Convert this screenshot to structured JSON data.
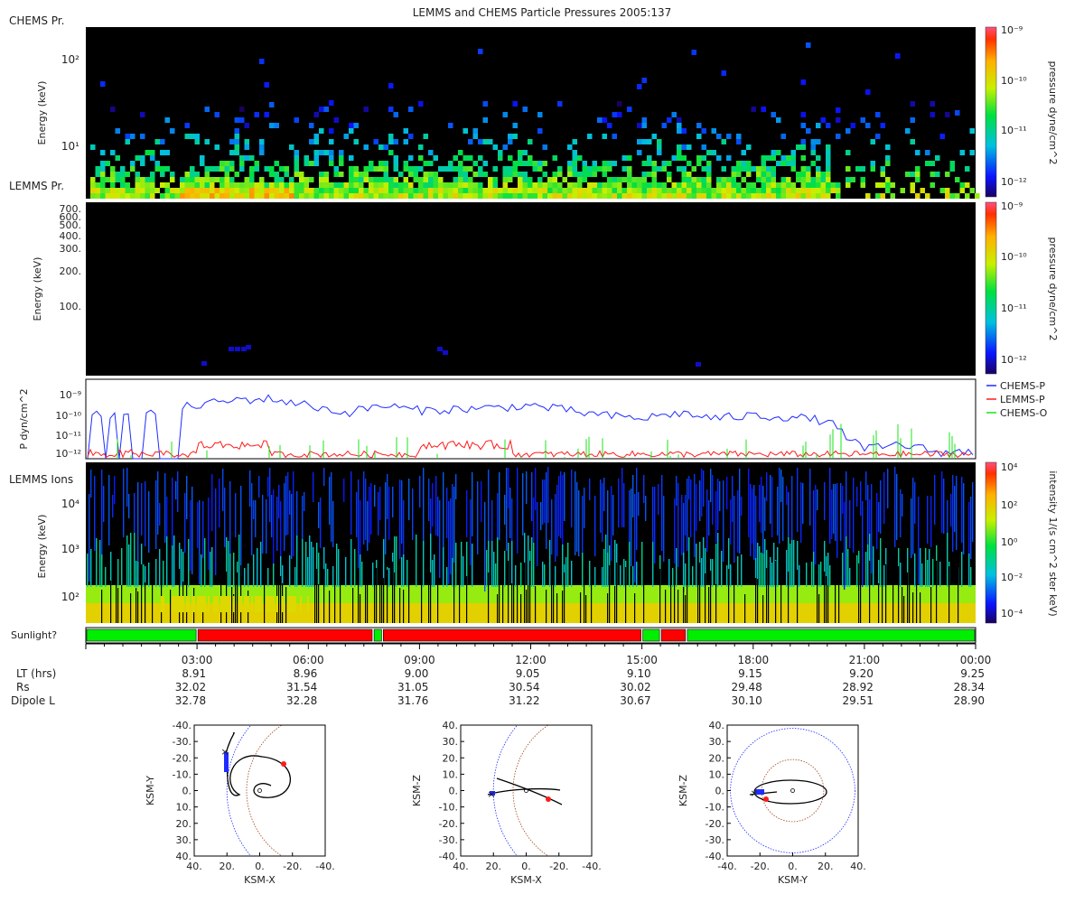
{
  "title": "LEMMS and CHEMS Particle Pressures  2005:137",
  "panels": {
    "chems": {
      "corner_label": "CHEMS Pr.",
      "ylabel": "Energy (keV)",
      "yticks": [
        "10²",
        "10¹"
      ],
      "colorbar_label": "pressure dyne/cm^2",
      "colorbar_ticks": [
        "10⁻⁹",
        "10⁻¹⁰",
        "10⁻¹¹",
        "10⁻¹²"
      ]
    },
    "lemms_pr": {
      "corner_label": "LEMMS Pr.",
      "ylabel": "Energy (keV)",
      "yticks": [
        "700.",
        "600.",
        "500.",
        "400.",
        "300.",
        "200.",
        "100."
      ],
      "colorbar_label": "pressure dyne/cm^2",
      "colorbar_ticks": [
        "10⁻⁹",
        "10⁻¹⁰",
        "10⁻¹¹",
        "10⁻¹²"
      ]
    },
    "pressure_lines": {
      "ylabel": "P dyn/cm^2",
      "yticks": [
        "10⁻⁹",
        "10⁻¹⁰",
        "10⁻¹¹",
        "10⁻¹²"
      ],
      "legend": [
        {
          "name": "CHEMS-P",
          "color": "#1f2cff"
        },
        {
          "name": "LEMMS-P",
          "color": "#ff1a1a"
        },
        {
          "name": "CHEMS-O",
          "color": "#19e619"
        }
      ]
    },
    "lemms_ions": {
      "corner_label": "LEMMS Ions",
      "ylabel": "Energy (keV)",
      "yticks": [
        "10⁴",
        "10³",
        "10²"
      ],
      "colorbar_label": "intensity 1/(s cm^2 ster keV)",
      "colorbar_ticks": [
        "10⁴",
        "10²",
        "10⁰",
        "10⁻²",
        "10⁻⁴"
      ]
    },
    "sunlight": {
      "label": "Sunlight?",
      "colors": {
        "sun": "#00ee00",
        "shadow": "#ff0000"
      }
    }
  },
  "time_axis": {
    "tick_labels": [
      "03:00",
      "06:00",
      "09:00",
      "12:00",
      "15:00",
      "18:00",
      "21:00",
      "00:00"
    ],
    "rows": [
      {
        "label": "LT (hrs)",
        "values": [
          "8.91",
          "8.96",
          "9.00",
          "9.05",
          "9.10",
          "9.15",
          "9.20",
          "9.25"
        ]
      },
      {
        "label": "Rs",
        "values": [
          "32.02",
          "31.54",
          "31.05",
          "30.54",
          "30.02",
          "29.48",
          "28.92",
          "28.34"
        ]
      },
      {
        "label": "Dipole L",
        "values": [
          "32.78",
          "32.28",
          "31.76",
          "31.22",
          "30.67",
          "30.10",
          "29.51",
          "28.90"
        ]
      }
    ]
  },
  "orbit_plots": [
    {
      "xlabel": "KSM-X",
      "ylabel": "KSM-Y",
      "xticks": [
        "40.",
        "20.",
        "0.",
        "-20.",
        "-40."
      ],
      "yticks": [
        "-40.",
        "-30.",
        "-20.",
        "-10.",
        "0.",
        "10.",
        "20.",
        "30.",
        "40."
      ]
    },
    {
      "xlabel": "KSM-X",
      "ylabel": "KSM-Z",
      "xticks": [
        "40.",
        "20.",
        "0.",
        "-20.",
        "-40."
      ],
      "yticks": [
        "40.",
        "30.",
        "20.",
        "10.",
        "0.",
        "-10.",
        "-20.",
        "-30.",
        "-40."
      ]
    },
    {
      "xlabel": "KSM-Y",
      "ylabel": "KSM-Z",
      "xticks": [
        "-40.",
        "-20.",
        "0.",
        "20.",
        "40."
      ],
      "yticks": [
        "40.",
        "30.",
        "20.",
        "10.",
        "0.",
        "-10.",
        "-20.",
        "-30.",
        "-40."
      ]
    }
  ],
  "chart_data": [
    {
      "type": "heatmap",
      "ylabel": "Energy (keV)",
      "zlabel": "pressure dyne/cm^2",
      "xrange_hours": [
        0,
        24
      ],
      "zrange": [
        "1e-12",
        "1e-9"
      ]
    },
    {
      "type": "heatmap",
      "ylabel": "Energy (keV)",
      "zlabel": "pressure dyne/cm^2",
      "xrange_hours": [
        0,
        24
      ],
      "zrange": [
        "1e-12",
        "1e-9"
      ]
    },
    {
      "type": "line",
      "ylabel": "P dyn/cm^2",
      "ylog": true,
      "yrange": [
        "1e-12",
        "1e-9"
      ],
      "series": [
        {
          "name": "CHEMS-P",
          "x_hours": [
            0.5,
            1,
            2,
            3,
            4,
            5,
            6,
            7,
            8,
            9,
            10,
            11,
            12,
            13,
            14,
            15,
            16,
            17,
            18,
            19,
            20,
            21,
            22,
            23
          ],
          "log10_p": [
            -10.3,
            -10.5,
            -10.2,
            -10.0,
            -9.8,
            -9.75,
            -10.0,
            -10.3,
            -10.0,
            -10.2,
            -10.15,
            -10.1,
            -10.0,
            -10.2,
            -10.4,
            -10.5,
            -10.3,
            -10.5,
            -10.4,
            -10.45,
            -10.6,
            -11.7,
            -11.5,
            -11.8
          ]
        },
        {
          "name": "LEMMS-P",
          "x_hours": [
            1,
            3,
            4,
            5,
            7,
            9,
            10,
            11,
            12,
            14,
            16,
            20,
            23
          ],
          "log10_p": [
            -11.7,
            -11.5,
            -11.6,
            -11.8,
            -12.0,
            -11.6,
            -11.4,
            -11.6,
            -11.7,
            -12.0,
            -12.0,
            -12.0,
            -11.9
          ]
        },
        {
          "name": "CHEMS-O",
          "x_hours": [
            3,
            5,
            9,
            11,
            14,
            16,
            19,
            21,
            22
          ],
          "log10_p": [
            -10.6,
            -10.7,
            -10.8,
            -10.9,
            -11.0,
            -11.2,
            -10.8,
            -10.6,
            -10.7
          ]
        }
      ]
    },
    {
      "type": "heatmap",
      "ylabel": "Energy (keV)",
      "zlabel": "intensity 1/(s cm^2 ster keV)",
      "xrange_hours": [
        0,
        24
      ],
      "zrange": [
        "1e-4",
        "1e4"
      ]
    },
    {
      "type": "bar",
      "name": "Sunlight?",
      "segments": [
        {
          "start_hour": 0.0,
          "end_hour": 3.0,
          "state": "sun"
        },
        {
          "start_hour": 3.0,
          "end_hour": 7.75,
          "state": "shadow"
        },
        {
          "start_hour": 7.75,
          "end_hour": 8.0,
          "state": "sun"
        },
        {
          "start_hour": 8.0,
          "end_hour": 15.0,
          "state": "shadow"
        },
        {
          "start_hour": 15.0,
          "end_hour": 15.5,
          "state": "sun"
        },
        {
          "start_hour": 15.5,
          "end_hour": 16.2,
          "state": "shadow"
        },
        {
          "start_hour": 16.2,
          "end_hour": 24.0,
          "state": "sun"
        }
      ]
    }
  ]
}
